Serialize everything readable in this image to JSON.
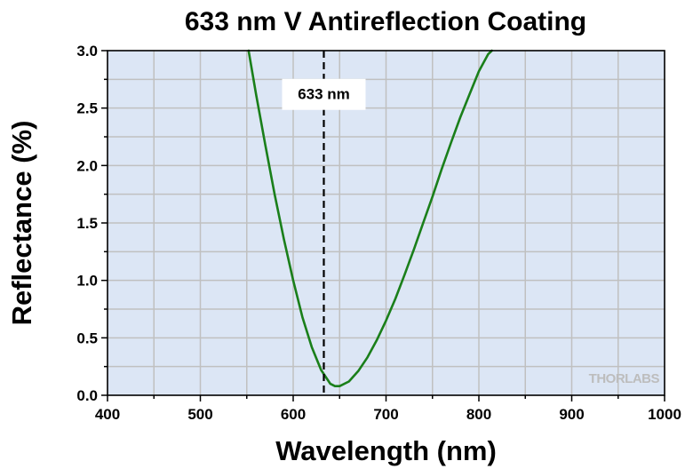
{
  "chart_data": {
    "type": "line",
    "title": "633 nm V Antireflection Coating",
    "xlabel": "Wavelength (nm)",
    "ylabel": "Reflectance (%)",
    "xlim": [
      400,
      1000
    ],
    "ylim": [
      0,
      3.0
    ],
    "x_ticks": [
      "400",
      "500",
      "600",
      "700",
      "800",
      "900",
      "1000"
    ],
    "y_ticks": [
      "0.0",
      "0.5",
      "1.0",
      "1.5",
      "2.0",
      "2.5",
      "3.0"
    ],
    "grid": true,
    "background_color": "#dce6f5",
    "grid_color": "#c0c0c0",
    "series": [
      {
        "color": "#1a7f1a",
        "x": [
          552,
          560,
          570,
          580,
          590,
          600,
          610,
          620,
          630,
          640,
          645,
          650,
          660,
          670,
          680,
          690,
          700,
          710,
          720,
          730,
          740,
          750,
          760,
          770,
          780,
          790,
          800,
          810,
          814
        ],
        "y": [
          3.0,
          2.62,
          2.18,
          1.75,
          1.36,
          1.0,
          0.68,
          0.42,
          0.22,
          0.1,
          0.08,
          0.08,
          0.12,
          0.21,
          0.33,
          0.48,
          0.65,
          0.84,
          1.05,
          1.27,
          1.5,
          1.73,
          1.97,
          2.2,
          2.42,
          2.62,
          2.82,
          2.97,
          3.0
        ]
      }
    ],
    "reference_line": {
      "x": 633,
      "style": "dashed",
      "color": "#000000"
    },
    "annotation": {
      "text": "633 nm",
      "x": 633,
      "y": 2.6
    }
  },
  "logo": {
    "text": "THORLABS"
  }
}
